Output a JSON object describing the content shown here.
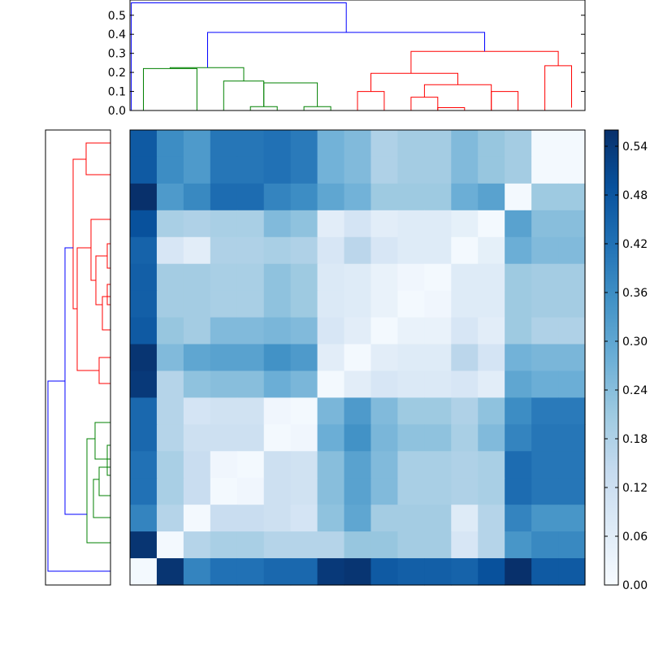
{
  "chart_data": [
    {
      "type": "heatmap",
      "title": "",
      "xlabel": "",
      "ylabel": "",
      "rows": 17,
      "cols": 17,
      "colormap": [
        "#f7fbff",
        "#deebf7",
        "#c6dbef",
        "#9ecae1",
        "#6baed6",
        "#4292c6",
        "#2171b5",
        "#08519c",
        "#08306b"
      ],
      "vmin": 0,
      "vmax": 0.56,
      "values": [
        [
          0.47,
          0.36,
          0.33,
          0.41,
          0.41,
          0.42,
          0.4,
          0.27,
          0.25,
          0.18,
          0.2,
          0.2,
          0.25,
          0.22,
          0.2,
          0.01,
          0.01
        ],
        [
          0.47,
          0.36,
          0.33,
          0.41,
          0.41,
          0.42,
          0.4,
          0.27,
          0.25,
          0.18,
          0.2,
          0.2,
          0.25,
          0.22,
          0.2,
          0.01,
          0.01
        ],
        [
          0.56,
          0.33,
          0.37,
          0.43,
          0.43,
          0.38,
          0.36,
          0.3,
          0.27,
          0.21,
          0.21,
          0.21,
          0.28,
          0.31,
          0.01,
          0.21,
          0.21
        ],
        [
          0.49,
          0.19,
          0.18,
          0.19,
          0.19,
          0.25,
          0.23,
          0.06,
          0.1,
          0.06,
          0.07,
          0.07,
          0.05,
          0.01,
          0.31,
          0.24,
          0.24
        ],
        [
          0.45,
          0.09,
          0.06,
          0.18,
          0.18,
          0.19,
          0.18,
          0.09,
          0.16,
          0.09,
          0.07,
          0.07,
          0.01,
          0.05,
          0.28,
          0.25,
          0.25
        ],
        [
          0.46,
          0.2,
          0.2,
          0.19,
          0.19,
          0.23,
          0.21,
          0.08,
          0.07,
          0.04,
          0.02,
          0.01,
          0.07,
          0.07,
          0.21,
          0.2,
          0.2
        ],
        [
          0.46,
          0.2,
          0.2,
          0.19,
          0.19,
          0.23,
          0.21,
          0.08,
          0.07,
          0.04,
          0.01,
          0.02,
          0.07,
          0.07,
          0.21,
          0.2,
          0.2
        ],
        [
          0.47,
          0.22,
          0.2,
          0.25,
          0.25,
          0.26,
          0.25,
          0.09,
          0.06,
          0.01,
          0.04,
          0.04,
          0.09,
          0.06,
          0.21,
          0.18,
          0.18
        ],
        [
          0.55,
          0.25,
          0.3,
          0.31,
          0.31,
          0.35,
          0.33,
          0.06,
          0.01,
          0.06,
          0.07,
          0.07,
          0.16,
          0.1,
          0.27,
          0.26,
          0.26
        ],
        [
          0.54,
          0.17,
          0.23,
          0.24,
          0.24,
          0.28,
          0.26,
          0.01,
          0.06,
          0.09,
          0.08,
          0.08,
          0.09,
          0.06,
          0.3,
          0.28,
          0.28
        ],
        [
          0.44,
          0.17,
          0.1,
          0.11,
          0.11,
          0.02,
          0.01,
          0.26,
          0.33,
          0.25,
          0.21,
          0.21,
          0.18,
          0.23,
          0.36,
          0.4,
          0.4
        ],
        [
          0.44,
          0.17,
          0.12,
          0.12,
          0.12,
          0.01,
          0.02,
          0.28,
          0.35,
          0.26,
          0.23,
          0.23,
          0.19,
          0.25,
          0.38,
          0.41,
          0.41
        ],
        [
          0.42,
          0.19,
          0.13,
          0.02,
          0.01,
          0.12,
          0.11,
          0.24,
          0.31,
          0.25,
          0.19,
          0.19,
          0.18,
          0.19,
          0.43,
          0.41,
          0.41
        ],
        [
          0.42,
          0.19,
          0.13,
          0.01,
          0.02,
          0.12,
          0.11,
          0.24,
          0.31,
          0.25,
          0.19,
          0.19,
          0.18,
          0.19,
          0.43,
          0.41,
          0.41
        ],
        [
          0.38,
          0.17,
          0.01,
          0.13,
          0.13,
          0.12,
          0.1,
          0.23,
          0.3,
          0.2,
          0.2,
          0.2,
          0.07,
          0.17,
          0.38,
          0.34,
          0.34
        ],
        [
          0.55,
          0.01,
          0.17,
          0.19,
          0.19,
          0.17,
          0.17,
          0.17,
          0.22,
          0.22,
          0.2,
          0.2,
          0.09,
          0.17,
          0.34,
          0.37,
          0.37
        ],
        [
          0.01,
          0.55,
          0.38,
          0.42,
          0.42,
          0.44,
          0.44,
          0.54,
          0.55,
          0.47,
          0.46,
          0.46,
          0.45,
          0.49,
          0.56,
          0.47,
          0.47
        ]
      ]
    },
    {
      "type": "dendrogram",
      "orientation": "top",
      "ylim": [
        0,
        0.58
      ],
      "yticks": [
        "0.0",
        "0.1",
        "0.2",
        "0.3",
        "0.4",
        "0.5"
      ],
      "ytick_values": [
        0,
        0.1,
        0.2,
        0.3,
        0.4,
        0.5
      ],
      "leaf_count": 17,
      "colors": {
        "blue": "#0000ff",
        "green": "#008000",
        "red": "#ff0000"
      },
      "links": [
        {
          "x": [
            0.5,
            0.5,
            2.5,
            2.5
          ],
          "y": [
            0,
            0.22,
            0.22,
            0
          ],
          "color": "green"
        },
        {
          "x": [
            4.5,
            4.5,
            5.5,
            5.5
          ],
          "y": [
            0,
            0.02,
            0.02,
            0
          ],
          "color": "green"
        },
        {
          "x": [
            6.5,
            6.5,
            7.5,
            7.5
          ],
          "y": [
            0,
            0.02,
            0.02,
            0
          ],
          "color": "green"
        },
        {
          "x": [
            3.5,
            3.5,
            5.0,
            5.0
          ],
          "y": [
            0,
            0.155,
            0.155,
            0.02
          ],
          "color": "green"
        },
        {
          "x": [
            5.0,
            5.0,
            7.0,
            7.0
          ],
          "y": [
            0.02,
            0.145,
            0.145,
            0.02
          ],
          "color": "green"
        },
        {
          "x": [
            1.5,
            1.5,
            4.25,
            4.25
          ],
          "y": [
            0.22,
            0.225,
            0.225,
            0.155
          ],
          "color": "green"
        },
        {
          "x": [
            8.5,
            8.5,
            9.5,
            9.5
          ],
          "y": [
            0,
            0.1,
            0.1,
            0
          ],
          "color": "red"
        },
        {
          "x": [
            10.5,
            10.5,
            11.5,
            11.5
          ],
          "y": [
            0,
            0.07,
            0.07,
            0
          ],
          "color": "red"
        },
        {
          "x": [
            11.5,
            11.5,
            12.5,
            12.5
          ],
          "y": [
            0,
            0.015,
            0.015,
            0
          ],
          "color": "red"
        },
        {
          "x": [
            11.0,
            11.0,
            13.5,
            13.5
          ],
          "y": [
            0.07,
            0.135,
            0.135,
            0
          ],
          "color": "red"
        },
        {
          "x": [
            13.5,
            13.5,
            14.5,
            14.5
          ],
          "y": [
            0,
            0.1,
            0.1,
            0
          ],
          "color": "red"
        },
        {
          "x": [
            9.0,
            9.0,
            12.25,
            12.25
          ],
          "y": [
            0.1,
            0.195,
            0.195,
            0.135
          ],
          "color": "red"
        },
        {
          "x": [
            15.5,
            15.5,
            16.5,
            16.5
          ],
          "y": [
            0,
            0.235,
            0.235,
            0.015
          ],
          "color": "red"
        },
        {
          "x": [
            10.5,
            10.5,
            16.0,
            16.0
          ],
          "y": [
            0.195,
            0.31,
            0.31,
            0.235
          ],
          "color": "red"
        },
        {
          "x": [
            2.9,
            2.9,
            13.25,
            13.25
          ],
          "y": [
            0.225,
            0.41,
            0.41,
            0.31
          ],
          "color": "blue"
        },
        {
          "x": [
            0.05,
            0.05,
            8.08,
            8.08
          ],
          "y": [
            0,
            0.565,
            0.565,
            0.41
          ],
          "color": "blue"
        }
      ]
    },
    {
      "type": "dendrogram",
      "orientation": "left",
      "leaf_count": 17,
      "colors": {
        "blue": "#0000ff",
        "green": "#008000",
        "red": "#ff0000"
      },
      "links": [
        {
          "p": [
            [
              136,
              176
            ],
            [
              106,
              176
            ],
            [
              106,
              215
            ],
            [
              136,
              215
            ]
          ],
          "color": "red"
        },
        {
          "p": [
            [
              136,
              194
            ],
            [
              136,
              176
            ]
          ],
          "color": "red"
        },
        {
          "p": [
            [
              136,
              300
            ],
            [
              132,
              300
            ],
            [
              132,
              330
            ],
            [
              136,
              330
            ]
          ],
          "color": "red"
        },
        {
          "p": [
            [
              136,
              350
            ],
            [
              132,
              350
            ],
            [
              132,
              375
            ],
            [
              136,
              375
            ]
          ],
          "color": "red"
        },
        {
          "p": [
            [
              136,
              365
            ],
            [
              126,
              365
            ],
            [
              126,
              406
            ],
            [
              136,
              406
            ]
          ],
          "color": "red"
        },
        {
          "p": [
            [
              132,
              315
            ],
            [
              118,
              315
            ],
            [
              118,
              375
            ],
            [
              126,
              375
            ]
          ],
          "color": "red"
        },
        {
          "p": [
            [
              136,
              270
            ],
            [
              112,
              270
            ],
            [
              112,
              345
            ],
            [
              118,
              345
            ]
          ],
          "color": "red"
        },
        {
          "p": [
            [
              136,
              440
            ],
            [
              122,
              440
            ],
            [
              122,
              472
            ],
            [
              136,
              472
            ]
          ],
          "color": "red"
        },
        {
          "p": [
            [
              112,
              305
            ],
            [
              95,
              305
            ],
            [
              95,
              456
            ],
            [
              122,
              456
            ]
          ],
          "color": "red"
        },
        {
          "p": [
            [
              106,
              196
            ],
            [
              90,
              196
            ],
            [
              90,
              380
            ],
            [
              95,
              380
            ]
          ],
          "color": "red"
        },
        {
          "p": [
            [
              136,
              520
            ],
            [
              117,
              520
            ],
            [
              117,
              565
            ],
            [
              136,
              565
            ]
          ],
          "color": "green"
        },
        {
          "p": [
            [
              136,
              548
            ],
            [
              132,
              548
            ],
            [
              132,
              585
            ],
            [
              136,
              585
            ]
          ],
          "color": "green"
        },
        {
          "p": [
            [
              136,
              575
            ],
            [
              122,
              575
            ],
            [
              122,
              610
            ],
            [
              136,
              610
            ]
          ],
          "color": "green"
        },
        {
          "p": [
            [
              122,
              590
            ],
            [
              115,
              590
            ],
            [
              115,
              637
            ],
            [
              136,
              637
            ]
          ],
          "color": "green"
        },
        {
          "p": [
            [
              117,
              540
            ],
            [
              107,
              540
            ],
            [
              107,
              668
            ],
            [
              136,
              668
            ]
          ],
          "color": "green"
        },
        {
          "p": [
            [
              90,
              305
            ],
            [
              80,
              305
            ],
            [
              80,
              633
            ],
            [
              107,
              633
            ]
          ],
          "color": "blue"
        },
        {
          "p": [
            [
              80,
              469
            ],
            [
              59,
              469
            ],
            [
              59,
              703
            ],
            [
              136,
              703
            ]
          ],
          "color": "blue"
        }
      ]
    },
    {
      "type": "colorbar",
      "vmin": 0,
      "vmax": 0.56,
      "ticks": [
        "0.00",
        "0.06",
        "0.12",
        "0.18",
        "0.24",
        "0.30",
        "0.36",
        "0.42",
        "0.48",
        "0.54"
      ],
      "tick_values": [
        0,
        0.06,
        0.12,
        0.18,
        0.24,
        0.3,
        0.36,
        0.42,
        0.48,
        0.54
      ],
      "colormap": [
        "#f7fbff",
        "#deebf7",
        "#c6dbef",
        "#9ecae1",
        "#6baed6",
        "#4292c6",
        "#2171b5",
        "#08519c",
        "#08306b"
      ]
    }
  ]
}
